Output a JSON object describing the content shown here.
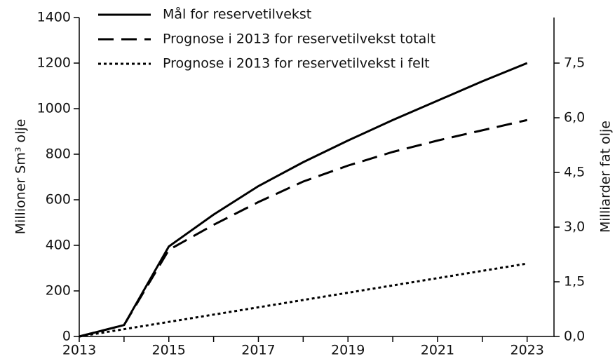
{
  "chart_data": {
    "type": "line",
    "ylabel": "Millioner Sm³ olje",
    "y2label": "Milliarder fat olje",
    "x": [
      2013,
      2014,
      2015,
      2016,
      2017,
      2018,
      2019,
      2020,
      2021,
      2022,
      2023
    ],
    "series": [
      {
        "name": "Mål for reservetilvekst",
        "color": "#000000",
        "dash": "solid",
        "values": [
          0,
          50,
          395,
          535,
          660,
          765,
          860,
          950,
          1035,
          1120,
          1200
        ]
      },
      {
        "name": "Prognose i 2013 for reservetilvekst totalt",
        "color": "#000000",
        "dash": "dashed",
        "values": [
          0,
          50,
          380,
          490,
          590,
          680,
          750,
          810,
          860,
          905,
          950
        ]
      },
      {
        "name": "Prognose i 2013 for reservetilvekst i felt",
        "color": "#000000",
        "dash": "dotted",
        "values": [
          0,
          32,
          64,
          96,
          128,
          160,
          192,
          224,
          256,
          288,
          320
        ]
      }
    ],
    "xlim": [
      2013,
      2023.6
    ],
    "xticks": [
      2013,
      2015,
      2017,
      2019,
      2021,
      2023
    ],
    "xminor_ticks": [
      2014,
      2016,
      2018,
      2020,
      2022
    ],
    "ylim": [
      0,
      1400
    ],
    "yticks": [
      0,
      200,
      400,
      600,
      800,
      1000,
      1200,
      1400
    ],
    "y2lim": [
      0,
      8.75
    ],
    "y2ticks": [
      {
        "value": 0,
        "label": "0,0"
      },
      {
        "value": 1.5,
        "label": "1,5"
      },
      {
        "value": 3,
        "label": "3,0"
      },
      {
        "value": 4.5,
        "label": "4,5"
      },
      {
        "value": 6,
        "label": "6,0"
      },
      {
        "value": 7.5,
        "label": "7,5"
      }
    ],
    "grid": false,
    "legend": "top-left"
  }
}
